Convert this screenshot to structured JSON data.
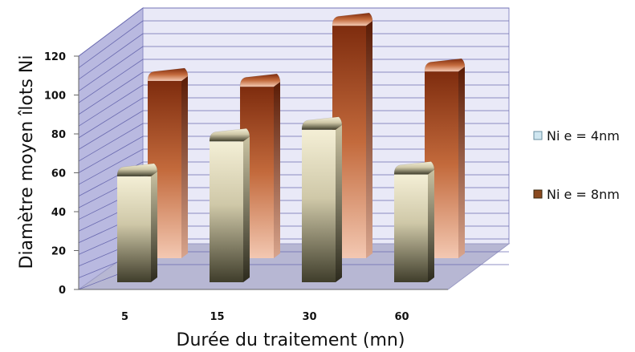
{
  "chart_data": {
    "type": "bar",
    "categories": [
      "5",
      "15",
      "30",
      "60"
    ],
    "series": [
      {
        "name": "Ni e = 4nm",
        "values": [
          59,
          77,
          83,
          60
        ],
        "color": "#e8e1c4"
      },
      {
        "name": "Ni e = 8nm",
        "values": [
          93,
          90,
          122,
          98
        ],
        "color": "#a84a1c"
      }
    ],
    "xlabel": "Durée du traitement (mn)",
    "ylabel": "Diamètre moyen îlots Ni",
    "ylim": [
      0,
      120
    ],
    "yticks": [
      "0",
      "20",
      "40",
      "60",
      "80",
      "100",
      "120"
    ],
    "grid": true,
    "legend_position": "right",
    "style": "3d-cylinder"
  }
}
